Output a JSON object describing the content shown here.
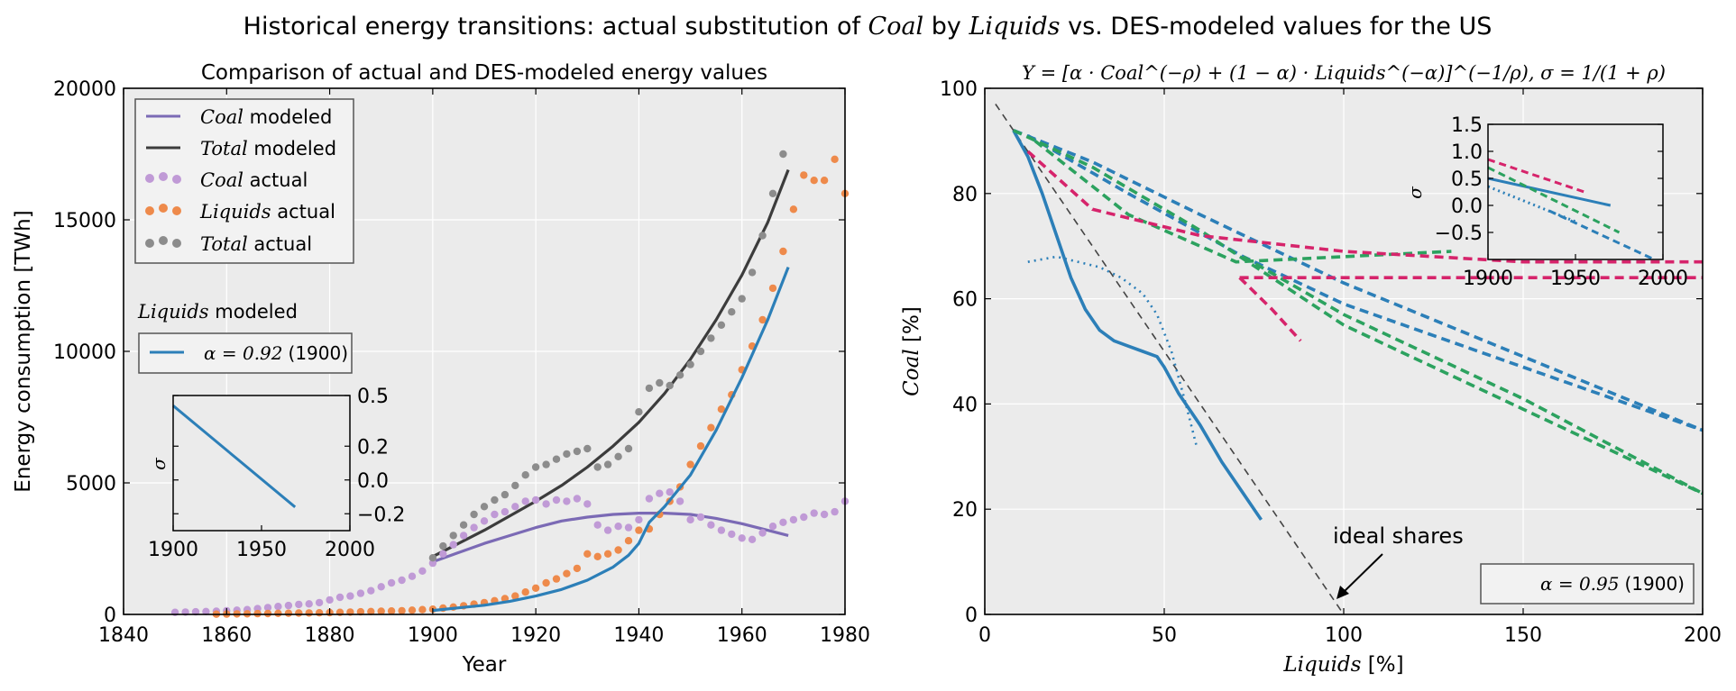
{
  "suptitle": {
    "pre": "Historical energy transitions: actual substitution of ",
    "coal": "Coal",
    "mid": " by ",
    "liquids": "Liquids",
    "post": " vs. DES-modeled values for the US"
  },
  "colors": {
    "coal_modeled": "#7b6ab5",
    "total_modeled": "#3c3c3c",
    "coal_actual": "#c09ad6",
    "liquids_actual": "#ee8a4b",
    "total_actual": "#8c8c8c",
    "liquids_modeled": "#2c7fb8",
    "green": "#2ca25f",
    "magenta": "#d6246b",
    "ideal": "#444444",
    "panel_bg": "#ebebeb"
  },
  "left": {
    "title": "Comparison of actual and DES-modeled energy values",
    "xlabel": "Year",
    "ylabel": "Energy consumption [TWh]",
    "xticks": [
      "1840",
      "1860",
      "1880",
      "1900",
      "1920",
      "1940",
      "1960",
      "1980"
    ],
    "yticks": [
      "0",
      "5000",
      "10000",
      "15000",
      "20000"
    ],
    "legend": [
      {
        "var": "Coal",
        "suffix": " modeled"
      },
      {
        "var": "Total",
        "suffix": " modeled"
      },
      {
        "var": "Coal",
        "suffix": " actual"
      },
      {
        "var": "Liquids",
        "suffix": " actual"
      },
      {
        "var": "Total",
        "suffix": " actual"
      }
    ],
    "liquids_header": {
      "var": "Liquids",
      "suffix": " modeled"
    },
    "liquids_legend": {
      "math": "α = 0.92",
      "year": "(1900)"
    },
    "inset": {
      "ylabel": "σ",
      "xticks": [
        "1900",
        "1950",
        "2000"
      ],
      "yticks": [
        "−0.2",
        "0.0",
        "0.2",
        "0.5"
      ]
    }
  },
  "right": {
    "title": "Y = [α · Coal^(−ρ) + (1 − α) · Liquids^(−α)]^(−1/ρ), σ = 1/(1 + ρ)",
    "xlabel_var": "Liquids",
    "xlabel_unit": " [%]",
    "ylabel_var": "Coal",
    "ylabel_unit": " [%]",
    "xticks": [
      "0",
      "50",
      "100",
      "150",
      "200"
    ],
    "yticks": [
      "0",
      "20",
      "40",
      "60",
      "80",
      "100"
    ],
    "annotation": "ideal shares",
    "legend": {
      "math": "α = 0.95",
      "year": "(1900)"
    },
    "inset": {
      "ylabel": "σ",
      "xticks": [
        "1900",
        "1950",
        "2000"
      ],
      "yticks": [
        "−0.5",
        "0.0",
        "0.5",
        "1.0",
        "1.5"
      ]
    }
  },
  "chart_data": [
    {
      "type": "line",
      "title": "Comparison of actual and DES-modeled energy values",
      "xlabel": "Year",
      "ylabel": "Energy consumption [TWh]",
      "xlim": [
        1840,
        1980
      ],
      "ylim": [
        0,
        20000
      ],
      "grid": true,
      "legend_position": "top-left",
      "series": [
        {
          "name": "Coal modeled",
          "style": "line",
          "x": [
            1900,
            1905,
            1910,
            1915,
            1920,
            1925,
            1930,
            1935,
            1940,
            1945,
            1950,
            1955,
            1960,
            1965,
            1969
          ],
          "y": [
            2000,
            2350,
            2700,
            3000,
            3300,
            3550,
            3700,
            3800,
            3850,
            3850,
            3800,
            3650,
            3450,
            3200,
            3000
          ]
        },
        {
          "name": "Total modeled",
          "style": "line",
          "x": [
            1900,
            1905,
            1910,
            1915,
            1920,
            1925,
            1930,
            1935,
            1940,
            1945,
            1950,
            1955,
            1960,
            1965,
            1969
          ],
          "y": [
            2200,
            2700,
            3200,
            3750,
            4300,
            4900,
            5600,
            6400,
            7300,
            8400,
            9700,
            11200,
            12900,
            14900,
            16900
          ]
        },
        {
          "name": "Coal actual",
          "style": "scatter",
          "x": [
            1850,
            1852,
            1854,
            1856,
            1858,
            1860,
            1862,
            1864,
            1866,
            1868,
            1870,
            1872,
            1874,
            1876,
            1878,
            1880,
            1882,
            1884,
            1886,
            1888,
            1890,
            1892,
            1894,
            1896,
            1898,
            1900,
            1902,
            1904,
            1906,
            1908,
            1910,
            1912,
            1914,
            1916,
            1918,
            1920,
            1922,
            1924,
            1926,
            1928,
            1930,
            1932,
            1934,
            1936,
            1938,
            1940,
            1942,
            1944,
            1946,
            1948,
            1950,
            1952,
            1954,
            1956,
            1958,
            1960,
            1962,
            1964,
            1966,
            1968,
            1970,
            1972,
            1974,
            1976,
            1978,
            1980
          ],
          "y": [
            80,
            90,
            100,
            110,
            120,
            140,
            160,
            180,
            220,
            260,
            300,
            340,
            380,
            400,
            450,
            550,
            650,
            700,
            800,
            900,
            1050,
            1200,
            1300,
            1450,
            1650,
            1950,
            2300,
            2650,
            3000,
            3300,
            3550,
            3800,
            3900,
            4100,
            4300,
            4350,
            4200,
            4350,
            4300,
            4400,
            4200,
            3400,
            3200,
            3350,
            3300,
            3600,
            4400,
            4600,
            4650,
            4300,
            3600,
            3700,
            3400,
            3200,
            3050,
            2900,
            2850,
            3100,
            3350,
            3500,
            3600,
            3700,
            3850,
            3800,
            3900,
            4300
          ]
        },
        {
          "name": "Liquids actual",
          "style": "scatter",
          "x": [
            1858,
            1860,
            1862,
            1864,
            1866,
            1868,
            1870,
            1872,
            1874,
            1876,
            1878,
            1880,
            1882,
            1884,
            1886,
            1888,
            1890,
            1892,
            1894,
            1896,
            1898,
            1900,
            1902,
            1904,
            1906,
            1908,
            1910,
            1912,
            1914,
            1916,
            1918,
            1920,
            1922,
            1924,
            1926,
            1928,
            1930,
            1932,
            1934,
            1936,
            1938,
            1940,
            1942,
            1944,
            1946,
            1948,
            1950,
            1952,
            1954,
            1956,
            1958,
            1960,
            1962,
            1964,
            1966,
            1968,
            1970,
            1972,
            1974,
            1976,
            1978,
            1980
          ],
          "y": [
            10,
            15,
            20,
            25,
            30,
            35,
            40,
            45,
            50,
            55,
            60,
            70,
            80,
            90,
            100,
            110,
            120,
            130,
            140,
            160,
            180,
            200,
            240,
            280,
            330,
            390,
            450,
            520,
            600,
            700,
            850,
            1000,
            1200,
            1350,
            1550,
            1750,
            2300,
            2200,
            2300,
            2450,
            2800,
            3200,
            3250,
            3800,
            4300,
            4850,
            5700,
            6400,
            7100,
            7800,
            8350,
            9300,
            10200,
            11200,
            12400,
            13800,
            15400,
            16700,
            16500,
            16500,
            17300,
            16000
          ]
        },
        {
          "name": "Total actual",
          "style": "scatter",
          "x": [
            1900,
            1902,
            1904,
            1906,
            1908,
            1910,
            1912,
            1914,
            1916,
            1918,
            1920,
            1922,
            1924,
            1926,
            1928,
            1930,
            1932,
            1934,
            1936,
            1938,
            1940,
            1942,
            1944,
            1946,
            1948,
            1950,
            1952,
            1954,
            1956,
            1958,
            1960,
            1962,
            1964,
            1966,
            1968
          ],
          "y": [
            2150,
            2600,
            3000,
            3400,
            3800,
            4100,
            4350,
            4550,
            4900,
            5300,
            5600,
            5700,
            5900,
            6100,
            6200,
            6300,
            5600,
            5700,
            6000,
            6300,
            7700,
            8600,
            8800,
            8700,
            9100,
            9500,
            10000,
            10500,
            11000,
            11500,
            12000,
            13000,
            14400,
            16000,
            17500
          ]
        },
        {
          "name": "Liquids modeled α = 0.92 (1900)",
          "style": "line",
          "x": [
            1900,
            1905,
            1910,
            1915,
            1920,
            1925,
            1930,
            1935,
            1938,
            1940,
            1941,
            1942,
            1945,
            1950,
            1955,
            1960,
            1965,
            1969
          ],
          "y": [
            150,
            250,
            350,
            500,
            700,
            950,
            1300,
            1800,
            2250,
            2700,
            3100,
            3500,
            4100,
            5300,
            7000,
            9000,
            11200,
            13200
          ]
        }
      ]
    },
    {
      "type": "line",
      "title": "σ inset (left)",
      "xlim": [
        1900,
        2000
      ],
      "ylim": [
        -0.3,
        0.5
      ],
      "series": [
        {
          "x": [
            1900,
            1969
          ],
          "y": [
            0.44,
            -0.16
          ]
        }
      ]
    },
    {
      "type": "line",
      "title": "Y = [α · Coal^(−ρ) + (1 − α) · Liquids^(−α)]^(−1/ρ), σ = 1/(1 + ρ)",
      "xlabel": "Liquids [%]",
      "ylabel": "Coal [%]",
      "xlim": [
        0,
        200
      ],
      "ylim": [
        0,
        100
      ],
      "grid": true,
      "legend_position": "bottom-right",
      "series": [
        {
          "name": "ideal shares",
          "style": "dashed-gray",
          "x": [
            3,
            100
          ],
          "y": [
            97,
            0
          ]
        },
        {
          "style": "solid-blue",
          "x": [
            8,
            12,
            16,
            20,
            24,
            28,
            32,
            36,
            40,
            44,
            48,
            50,
            54,
            60,
            66,
            72,
            77
          ],
          "y": [
            92,
            87,
            80,
            72,
            64,
            58,
            54,
            52,
            51,
            50,
            49,
            47,
            42,
            36,
            29,
            23,
            18
          ]
        },
        {
          "style": "dotted-blue",
          "x": [
            12,
            20,
            26,
            32,
            38,
            44,
            48,
            52,
            56,
            59
          ],
          "y": [
            67,
            68,
            67,
            66,
            64,
            61,
            57,
            50,
            40,
            32
          ]
        },
        {
          "style": "dashed-blue",
          "x": [
            8,
            30,
            60,
            100,
            150,
            200
          ],
          "y": [
            92,
            86,
            76,
            63,
            49,
            35
          ]
        },
        {
          "style": "dashed-blue",
          "x": [
            12,
            40,
            72,
            100,
            150,
            200
          ],
          "y": [
            91,
            80,
            68,
            59,
            47,
            35
          ]
        },
        {
          "style": "dashed-green",
          "x": [
            8,
            30,
            60,
            100,
            150,
            200
          ],
          "y": [
            92,
            85,
            73,
            55,
            39,
            23
          ]
        },
        {
          "style": "dashed-green",
          "x": [
            14,
            40,
            70,
            100,
            130
          ],
          "y": [
            90,
            76,
            67,
            68,
            69
          ]
        },
        {
          "style": "dashed-green",
          "x": [
            72,
            100,
            150,
            200
          ],
          "y": [
            68,
            57,
            41,
            23
          ]
        },
        {
          "style": "dashed-magenta",
          "x": [
            12,
            30,
            60,
            100,
            150,
            200
          ],
          "y": [
            88,
            77,
            72,
            69,
            67,
            67
          ]
        },
        {
          "style": "dashed-magenta",
          "x": [
            71,
            100,
            150,
            200
          ],
          "y": [
            64,
            64,
            64,
            64
          ]
        },
        {
          "style": "dashed-magenta",
          "x": [
            71,
            80,
            88
          ],
          "y": [
            64,
            58,
            52
          ]
        }
      ]
    },
    {
      "type": "line",
      "title": "σ inset (right)",
      "xlim": [
        1900,
        2000
      ],
      "ylim": [
        -1.0,
        1.5
      ],
      "series": [
        {
          "style": "solid-blue",
          "x": [
            1900,
            1970
          ],
          "y": [
            0.5,
            0.0
          ]
        },
        {
          "style": "dotted-blue",
          "x": [
            1900,
            1950
          ],
          "y": [
            0.35,
            -0.3
          ]
        },
        {
          "style": "dashed-blue",
          "x": [
            1935,
            1995
          ],
          "y": [
            -0.1,
            -1.0
          ]
        },
        {
          "style": "dashed-green",
          "x": [
            1900,
            1975
          ],
          "y": [
            0.7,
            -0.5
          ]
        },
        {
          "style": "dashed-magenta",
          "x": [
            1900,
            1955
          ],
          "y": [
            0.85,
            0.25
          ]
        }
      ]
    }
  ]
}
